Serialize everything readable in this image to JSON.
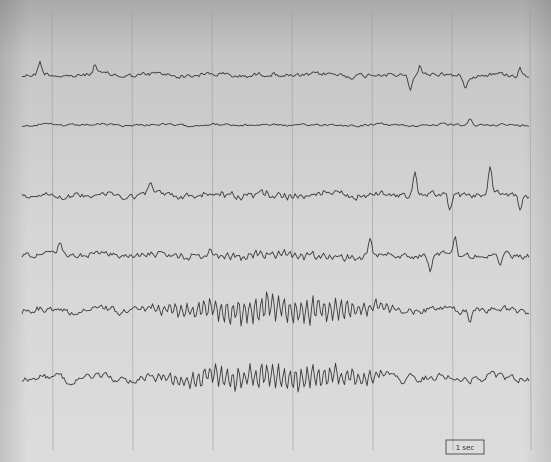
{
  "scale_bar": {
    "label": "1 sec"
  }
}
